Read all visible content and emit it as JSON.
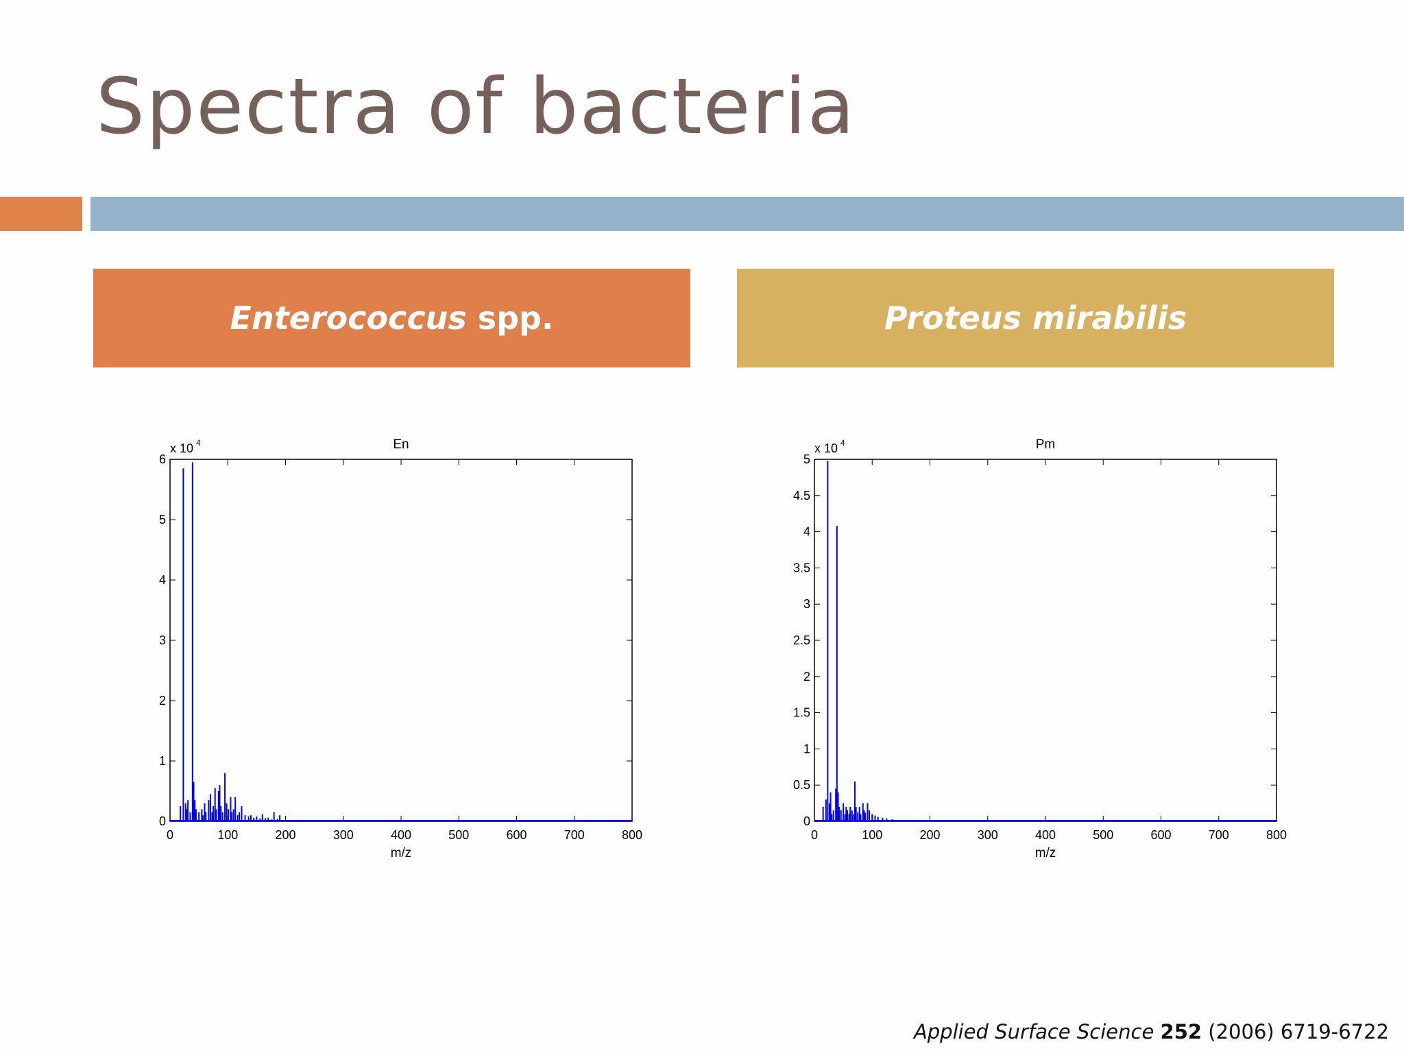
{
  "slide": {
    "title": "Spectra of bacteria",
    "left_header": {
      "genus": "Enterococcus",
      "suffix": " spp."
    },
    "right_header": {
      "name": "Proteus mirabilis"
    },
    "citation": {
      "journal": "Applied Surface Science",
      "volume": "252",
      "rest": "(2006) 6719-6722"
    },
    "colors": {
      "title": "#76605a",
      "accent_orange": "#e0834b",
      "accent_blue": "#96b3cc",
      "left_header": "#df804a",
      "right_header": "#d8b160",
      "series": "#0000ff"
    }
  },
  "chart_data": [
    {
      "type": "line",
      "title": "En",
      "xlabel": "m/z",
      "ylabel": "",
      "exponent_label": "x 10",
      "exponent": "4",
      "xlim": [
        0,
        800
      ],
      "ylim": [
        0,
        6
      ],
      "xticks": [
        "0",
        "100",
        "200",
        "300",
        "400",
        "500",
        "600",
        "700",
        "800"
      ],
      "yticks": [
        "0",
        "1",
        "2",
        "3",
        "4",
        "5",
        "6"
      ],
      "series": [
        {
          "x": [
            18,
            23,
            27,
            29,
            31,
            35,
            39,
            41,
            43,
            45,
            50,
            55,
            57,
            60,
            62,
            67,
            70,
            73,
            75,
            78,
            80,
            84,
            86,
            88,
            91,
            95,
            98,
            101,
            105,
            107,
            110,
            113,
            117,
            120,
            124,
            130,
            136,
            140,
            145,
            150,
            156,
            160,
            165,
            170,
            176,
            180,
            186,
            190,
            200,
            220,
            260,
            320,
            400,
            500,
            600,
            700,
            800
          ],
          "y": [
            0.25,
            5.85,
            0.3,
            0.2,
            0.35,
            0.15,
            5.95,
            0.65,
            0.35,
            0.2,
            0.15,
            0.2,
            0.1,
            0.3,
            0.15,
            0.35,
            0.45,
            0.15,
            0.25,
            0.55,
            0.2,
            0.5,
            0.6,
            0.25,
            0.15,
            0.8,
            0.3,
            0.2,
            0.4,
            0.15,
            0.2,
            0.4,
            0.1,
            0.15,
            0.25,
            0.1,
            0.08,
            0.1,
            0.06,
            0.08,
            0.05,
            0.12,
            0.05,
            0.06,
            0.03,
            0.15,
            0.04,
            0.1,
            0.02,
            0.01,
            0.01,
            0.01,
            0.005,
            0.005,
            0.005,
            0.005,
            0.005
          ]
        }
      ]
    },
    {
      "type": "line",
      "title": "Pm",
      "xlabel": "m/z",
      "ylabel": "",
      "exponent_label": "x 10",
      "exponent": "4",
      "xlim": [
        0,
        800
      ],
      "ylim": [
        0,
        5
      ],
      "xticks": [
        "0",
        "100",
        "200",
        "300",
        "400",
        "500",
        "600",
        "700",
        "800"
      ],
      "yticks": [
        "0",
        "0.5",
        "1",
        "1.5",
        "2",
        "2.5",
        "3",
        "3.5",
        "4",
        "4.5",
        "5"
      ],
      "series": [
        {
          "x": [
            15,
            20,
            23,
            26,
            28,
            30,
            33,
            37,
            39,
            41,
            43,
            46,
            50,
            53,
            55,
            57,
            60,
            62,
            65,
            67,
            70,
            72,
            75,
            78,
            80,
            84,
            86,
            88,
            92,
            95,
            100,
            105,
            110,
            118,
            125,
            135,
            150,
            160,
            180,
            200,
            250,
            300,
            400,
            500,
            600,
            700,
            800
          ],
          "y": [
            0.2,
            0.3,
            4.98,
            0.25,
            0.4,
            0.1,
            0.15,
            0.45,
            4.08,
            0.4,
            0.2,
            0.15,
            0.25,
            0.1,
            0.2,
            0.15,
            0.1,
            0.2,
            0.15,
            0.1,
            0.55,
            0.2,
            0.12,
            0.2,
            0.1,
            0.25,
            0.15,
            0.12,
            0.25,
            0.15,
            0.1,
            0.08,
            0.06,
            0.05,
            0.04,
            0.03,
            0.02,
            0.02,
            0.02,
            0.01,
            0.01,
            0.01,
            0.005,
            0.005,
            0.005,
            0.005,
            0.005
          ]
        }
      ]
    }
  ]
}
